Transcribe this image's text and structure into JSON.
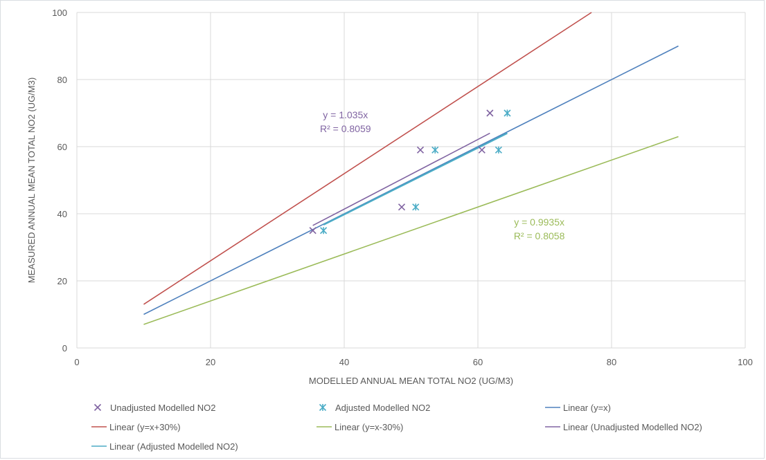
{
  "chart_data": {
    "type": "scatter",
    "xlabel": "MODELLED ANNUAL MEAN TOTAL NO2 (UG/M3)",
    "ylabel": "MEASURED ANNUAL MEAN TOTAL NO2 (UG/M3)",
    "xlim": [
      0,
      100
    ],
    "ylim": [
      0,
      100
    ],
    "x_ticks": [
      0,
      20,
      40,
      60,
      80,
      100
    ],
    "y_ticks": [
      0,
      20,
      40,
      60,
      80,
      100
    ],
    "grid": true,
    "legend_position": "bottom",
    "series": [
      {
        "name": "Unadjusted Modelled NO2",
        "kind": "scatter",
        "marker": "x",
        "color": "#8064a2",
        "points": [
          [
            35.3,
            35
          ],
          [
            48.6,
            42
          ],
          [
            51.4,
            59
          ],
          [
            60.6,
            59
          ],
          [
            61.8,
            70
          ]
        ]
      },
      {
        "name": "Adjusted Modelled NO2",
        "kind": "scatter",
        "marker": "asterisk",
        "color": "#4bacc6",
        "points": [
          [
            36.9,
            35
          ],
          [
            50.7,
            42
          ],
          [
            53.6,
            59
          ],
          [
            63.1,
            59
          ],
          [
            64.4,
            70
          ]
        ]
      },
      {
        "name": "Linear (y=x)",
        "kind": "line",
        "color": "#4f81bd",
        "points": [
          [
            10,
            10
          ],
          [
            90,
            90
          ]
        ]
      },
      {
        "name": "Linear (y=x+30%)",
        "kind": "line",
        "color": "#c0504d",
        "points": [
          [
            10,
            13
          ],
          [
            77,
            100
          ]
        ]
      },
      {
        "name": "Linear (y=x-30%)",
        "kind": "line",
        "color": "#9bbb59",
        "points": [
          [
            10,
            7
          ],
          [
            90,
            63
          ]
        ]
      },
      {
        "name": "Linear (Unadjusted Modelled NO2)",
        "kind": "line",
        "color": "#8064a2",
        "points": [
          [
            35.3,
            36.5
          ],
          [
            61.8,
            64
          ]
        ]
      },
      {
        "name": "Linear (Adjusted Modelled NO2)",
        "kind": "line",
        "color": "#4bacc6",
        "points": [
          [
            36.9,
            36.7
          ],
          [
            64.4,
            64
          ]
        ]
      }
    ],
    "annotations": [
      {
        "lines": [
          "y = 1.035x",
          "R² = 0.8059"
        ],
        "color": "#8064a2",
        "x": 35,
        "y": 68.5
      },
      {
        "lines": [
          "y = 0.9935x",
          "R² = 0.8058"
        ],
        "color": "#9bbb59",
        "x": 64,
        "y": 36.5
      }
    ]
  }
}
